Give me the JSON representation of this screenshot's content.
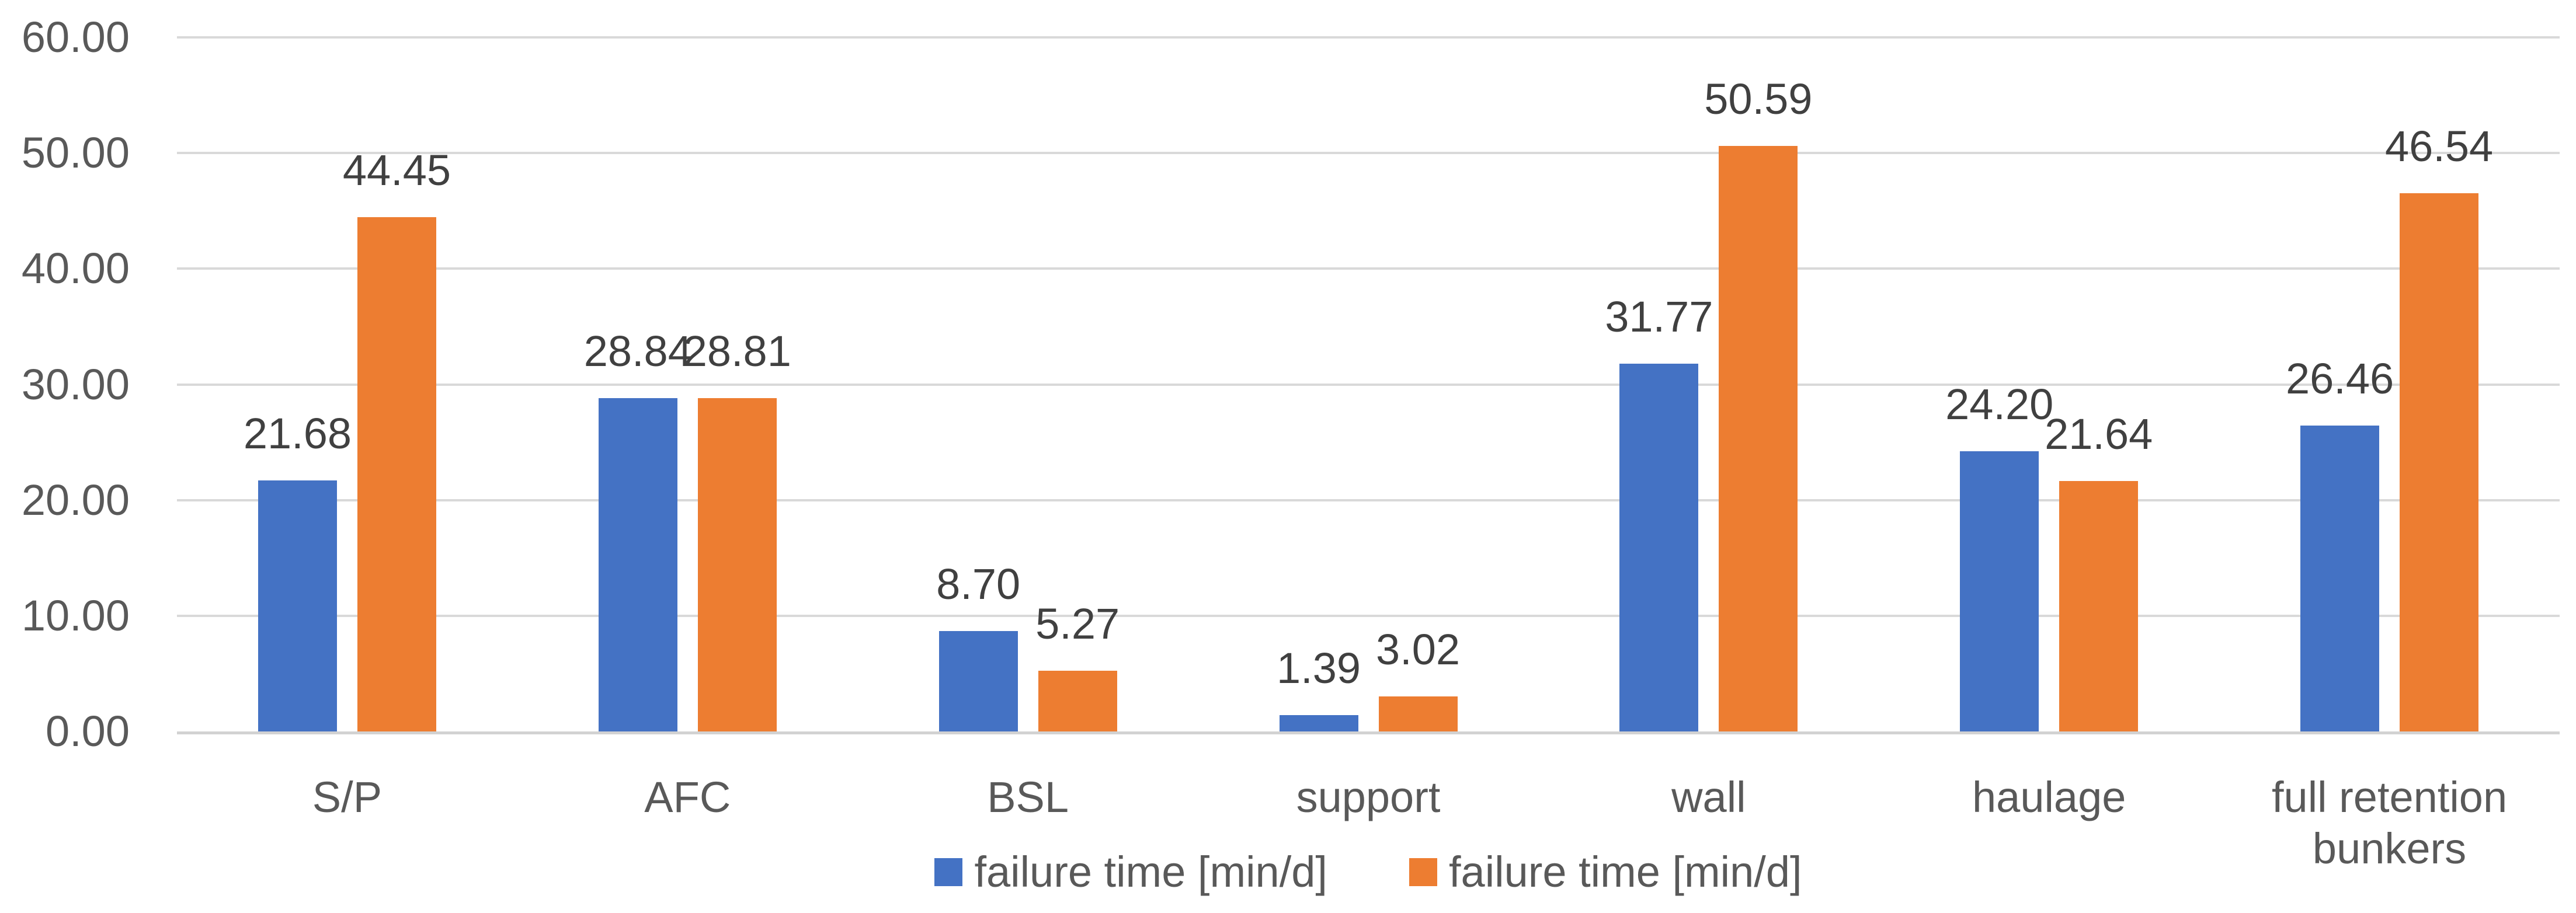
{
  "chart_data": {
    "type": "bar",
    "categories": [
      "S/P",
      "AFC",
      "BSL",
      "support",
      "wall",
      "haulage",
      "full retention bunkers"
    ],
    "series": [
      {
        "name": "failure time [min/d]",
        "color": "#4472C4",
        "values": [
          21.68,
          28.84,
          8.7,
          1.39,
          31.77,
          24.2,
          26.46
        ]
      },
      {
        "name": "failure time [min/d]",
        "color": "#ED7D31",
        "values": [
          44.45,
          28.81,
          5.27,
          3.02,
          50.59,
          21.64,
          46.54
        ]
      }
    ],
    "data_labels": [
      [
        "21.68",
        "28.84",
        "8.70",
        "1.39",
        "31.77",
        "24.20",
        "26.46"
      ],
      [
        "44.45",
        "28.81",
        "5.27",
        "3.02",
        "50.59",
        "21.64",
        "46.54"
      ]
    ],
    "ylim": [
      0,
      60
    ],
    "ytick_interval": 10,
    "yticks": [
      "0.00",
      "10.00",
      "20.00",
      "30.00",
      "40.00",
      "50.00",
      "60.00"
    ],
    "grid": true,
    "legend_position": "bottom",
    "legend": [
      {
        "label": "failure time [min/d]",
        "color": "#4472C4"
      },
      {
        "label": "failure time [min/d]",
        "color": "#ED7D31"
      }
    ]
  },
  "colors": {
    "bar_blue": "#4472C4",
    "bar_orange": "#ED7D31",
    "gridline": "#D9D9D9",
    "axis_line": "#D2D2D2",
    "tick_label": "#595959",
    "data_label": "#404040",
    "background": "#FFFFFF"
  }
}
